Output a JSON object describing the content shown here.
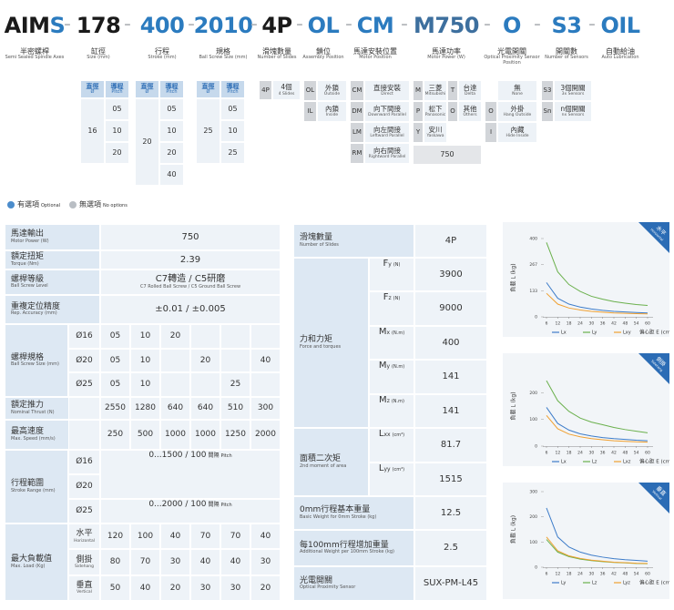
{
  "header": {
    "separator": "-",
    "codes": [
      {
        "parts": [
          {
            "text": "AIM",
            "color": "#1a1a1a"
          },
          {
            "text": "S",
            "color": "#2b7bbf"
          }
        ],
        "label": "半密螺桿",
        "sublabel": "Semi Sealed Spindle Axes"
      },
      {
        "parts": [
          {
            "text": "178",
            "color": "#1a1a1a"
          }
        ],
        "label": "缸徑",
        "sublabel": "Size (mm)"
      },
      {
        "parts": [
          {
            "text": "400",
            "color": "#2b7bbf"
          }
        ],
        "label": "行程",
        "sublabel": "Stroke (mm)"
      },
      {
        "parts": [
          {
            "text": "2010",
            "color": "#2b7bbf"
          }
        ],
        "label": "規格",
        "sublabel": "Ball Screw Size (mm)"
      },
      {
        "parts": [
          {
            "text": "4P",
            "color": "#1a1a1a"
          }
        ],
        "label": "滑塊數量",
        "sublabel": "Number of Slides"
      },
      {
        "parts": [
          {
            "text": "OL",
            "color": "#2b7bbf"
          }
        ],
        "label": "鎖位",
        "sublabel": "Assembly Position"
      },
      {
        "parts": [
          {
            "text": "CM",
            "color": "#2b7bbf"
          }
        ],
        "label": "馬達安裝位置",
        "sublabel": "Motor Position"
      },
      {
        "parts": [
          {
            "text": "M750",
            "color": "#3d6f9e"
          }
        ],
        "label": "馬達功率",
        "sublabel": "Motor Power (W)"
      },
      {
        "parts": [
          {
            "text": "O",
            "color": "#2b7bbf"
          }
        ],
        "label": "光電開關",
        "sublabel": "Optical Proximity Sensor Position"
      },
      {
        "parts": [
          {
            "text": "S3",
            "color": "#2b7bbf"
          }
        ],
        "label": "開關數",
        "sublabel": "Number of Sensors"
      },
      {
        "parts": [
          {
            "text": "OIL",
            "color": "#2b7bbf"
          }
        ],
        "label": "自動給油",
        "sublabel": "Auto Lubrication"
      }
    ]
  },
  "options": {
    "screw_boxes": [
      {
        "headers": [
          "直徑",
          "導程"
        ],
        "header_subs": [
          "Ø",
          "Pitch"
        ],
        "diameter": "16",
        "pitches": [
          "05",
          "10",
          "20"
        ]
      },
      {
        "headers": [
          "直徑",
          "導程"
        ],
        "header_subs": [
          "Ø",
          "Pitch"
        ],
        "diameter": "20",
        "pitches": [
          "05",
          "10",
          "20",
          "40"
        ]
      },
      {
        "headers": [
          "直徑",
          "導程"
        ],
        "header_subs": [
          "Ø",
          "Pitch"
        ],
        "diameter": "25",
        "pitches": [
          "05",
          "10",
          "25"
        ]
      }
    ],
    "slides": [
      {
        "code": "4P",
        "label": "4個",
        "sub": "4 Slides"
      }
    ],
    "lock": [
      {
        "code": "OL",
        "label": "外鎖",
        "sub": "Outside"
      },
      {
        "code": "IL",
        "label": "內鎖",
        "sub": "Inside"
      }
    ],
    "motor_position": [
      {
        "code": "CM",
        "label": "直接安裝",
        "sub": "Direct"
      },
      {
        "code": "DM",
        "label": "向下間接",
        "sub": "Downward Parallel"
      },
      {
        "code": "LM",
        "label": "向左間接",
        "sub": "Leftward Parallel"
      },
      {
        "code": "RM",
        "label": "向右間接",
        "sub": "Rightward Parallel"
      }
    ],
    "motor_brand": [
      {
        "code": "M",
        "label": "三菱",
        "sub": "Mitsubishi"
      },
      {
        "code": "T",
        "label": "台達",
        "sub": "Delta"
      },
      {
        "code": "P",
        "label": "松下",
        "sub": "Panasonic"
      },
      {
        "code": "O",
        "label": "其他",
        "sub": "Others"
      },
      {
        "code": "Y",
        "label": "安川",
        "sub": "Yaskawa"
      }
    ],
    "motor_power": "750",
    "sensor_position": [
      {
        "label": "無",
        "sub": "None"
      },
      {
        "code": "O",
        "label": "外掛",
        "sub": "Hang Outside"
      },
      {
        "code": "I",
        "label": "內藏",
        "sub": "Hide Inside"
      }
    ],
    "sensor_count": [
      {
        "code": "S3",
        "label": "3個開關",
        "sub": "3x Sensors"
      },
      {
        "code": "Sn",
        "label": "n個開關",
        "sub": "nx Sensors"
      }
    ]
  },
  "legend": {
    "optional": "有選項",
    "optional_en": "Optional",
    "none": "無選項",
    "none_en": "No options"
  },
  "spec_table": {
    "rows": [
      {
        "label": "馬達輸出",
        "sub": "Motor Power (W)",
        "value": "750"
      },
      {
        "label": "額定扭矩",
        "sub": "Torque (Nm)",
        "value": "2.39"
      },
      {
        "label": "螺桿等級",
        "sub": "Ball Screw Level",
        "value": "C7轉造 / C5研磨",
        "value_sub": "C7 Rolled Ball Screw / C5 Ground Ball Screw"
      },
      {
        "label": "重複定位精度",
        "sub": "Rep. Accuracy (mm)",
        "value": "±0.01 / ±0.005"
      },
      {
        "label": "螺桿規格",
        "sub": "Ball Screw Size (mm)",
        "rows": [
          {
            "key": "Ø16",
            "values": [
              "05",
              "10",
              "20",
              null,
              null,
              null
            ]
          },
          {
            "key": "Ø20",
            "values": [
              "05",
              "10",
              null,
              "20",
              null,
              "40"
            ]
          },
          {
            "key": "Ø25",
            "values": [
              "05",
              "10",
              null,
              null,
              "25",
              null
            ]
          }
        ]
      },
      {
        "label": "額定推力",
        "sub": "Nominal Thrust (N)",
        "values": [
          2550,
          1280,
          640,
          640,
          510,
          300
        ]
      },
      {
        "label": "最高速度",
        "sub": "Max. Speed (mm/s)",
        "values": [
          250,
          500,
          1000,
          1000,
          1250,
          2000
        ]
      },
      {
        "label": "行程範圍",
        "sub": "Stroke Range (mm)",
        "keys": [
          "Ø16",
          "Ø20",
          "Ø25"
        ],
        "ranges": [
          {
            "value": "0...1500 / 100",
            "pitch": "間隔",
            "pitch_en": "Pitch"
          },
          {
            "value": "0...2000 / 100",
            "pitch": "間隔",
            "pitch_en": "Pitch"
          }
        ]
      },
      {
        "label": "最大負載值",
        "sub": "Max. Load (Kg)",
        "rows": [
          {
            "key": "水平",
            "key_en": "Horizontal",
            "values": [
              120,
              100,
              40,
              70,
              70,
              40
            ]
          },
          {
            "key": "側掛",
            "key_en": "Sidehang",
            "values": [
              80,
              70,
              30,
              40,
              40,
              30
            ]
          },
          {
            "key": "垂直",
            "key_en": "Vertical",
            "values": [
              50,
              40,
              20,
              30,
              30,
              20
            ]
          }
        ]
      }
    ]
  },
  "load_table": {
    "rows": [
      {
        "label": "滑塊數量",
        "sub": "Number of Slides",
        "value": "4P"
      },
      {
        "label": "力和力矩",
        "sub": "Force and torques",
        "rows": [
          {
            "key": "F",
            "index": "y",
            "unit": "(N)",
            "value": 3900
          },
          {
            "key": "F",
            "index": "z",
            "unit": "(N)",
            "value": 9000
          },
          {
            "key": "M",
            "index": "x",
            "unit": "(N.m)",
            "value": 400
          },
          {
            "key": "M",
            "index": "y",
            "unit": "(N.m)",
            "value": 141
          },
          {
            "key": "M",
            "index": "z",
            "unit": "(N.m)",
            "value": 141
          }
        ]
      },
      {
        "label": "面積二次矩",
        "sub": "2nd moment of area",
        "rows": [
          {
            "key": "L",
            "index": "xx",
            "unit": "(cm⁴)",
            "value": 81.7
          },
          {
            "key": "L",
            "index": "yy",
            "unit": "(cm⁴)",
            "value": 1515
          }
        ]
      },
      {
        "label": "0mm行程基本重量",
        "sub": "Basic Weight for 0mm Stroke (kg)",
        "value": 12.5
      },
      {
        "label": "每100mm行程增加重量",
        "sub": "Additional Weight per 100mm Stroke (kg)",
        "value": 2.5
      },
      {
        "label": "光電開關",
        "sub": "Optical Proximity Sensor",
        "value": "SUX-PM-L45"
      }
    ]
  },
  "charts": [
    {
      "type": "line",
      "badge": "水平",
      "badge_en": "Horizontal",
      "y_label": "負載 L (kg)",
      "x_label": "偏心距 E (cm)",
      "x": [
        6,
        12,
        18,
        24,
        30,
        36,
        42,
        48,
        54,
        60
      ],
      "xlim": [
        6,
        60
      ],
      "xticks": [
        6,
        12,
        18,
        24,
        30,
        36,
        42,
        48,
        54,
        60
      ],
      "ylim": [
        0,
        400
      ],
      "yticks": [
        0,
        133,
        267,
        400
      ],
      "series": [
        {
          "name": "Lx",
          "color": "#3d7cc9",
          "values": [
            175,
            95,
            65,
            50,
            40,
            33,
            28,
            25,
            22,
            20
          ]
        },
        {
          "name": "Ly",
          "color": "#6ab04c",
          "values": [
            380,
            230,
            165,
            130,
            105,
            90,
            78,
            70,
            63,
            58
          ]
        },
        {
          "name": "Lxy",
          "color": "#f0a030",
          "values": [
            120,
            65,
            45,
            35,
            28,
            24,
            20,
            18,
            16,
            15
          ]
        }
      ]
    },
    {
      "type": "line",
      "badge": "側掛",
      "badge_en": "Sidehang",
      "y_label": "負載 L (kg)",
      "x_label": "偏心距 E (cm)",
      "x": [
        6,
        12,
        18,
        24,
        30,
        36,
        42,
        48,
        54,
        60
      ],
      "xlim": [
        6,
        60
      ],
      "xticks": [
        6,
        12,
        18,
        24,
        30,
        36,
        42,
        48,
        54,
        60
      ],
      "ylim": [
        0,
        300
      ],
      "yticks": [
        0,
        100,
        200
      ],
      "series": [
        {
          "name": "Lx",
          "color": "#3d7cc9",
          "values": [
            145,
            85,
            60,
            46,
            38,
            32,
            28,
            25,
            22,
            20
          ]
        },
        {
          "name": "Lz",
          "color": "#6ab04c",
          "values": [
            245,
            170,
            130,
            105,
            90,
            80,
            70,
            62,
            56,
            50
          ]
        },
        {
          "name": "Lxz",
          "color": "#f0a030",
          "values": [
            115,
            65,
            45,
            35,
            28,
            24,
            20,
            18,
            16,
            15
          ]
        }
      ]
    },
    {
      "type": "line",
      "badge": "垂直",
      "badge_en": "Vertical",
      "y_label": "負載 L (kg)",
      "x_label": "偏心距 E (cm)",
      "x": [
        6,
        12,
        18,
        24,
        30,
        36,
        42,
        48,
        54,
        60
      ],
      "xlim": [
        6,
        60
      ],
      "xticks": [
        6,
        12,
        18,
        24,
        30,
        36,
        42,
        48,
        54,
        60
      ],
      "ylim": [
        0,
        300
      ],
      "yticks": [
        0,
        100,
        200,
        300
      ],
      "series": [
        {
          "name": "Ly",
          "color": "#3d7cc9",
          "values": [
            235,
            120,
            80,
            60,
            48,
            40,
            34,
            30,
            27,
            24
          ]
        },
        {
          "name": "Lz",
          "color": "#6ab04c",
          "values": [
            110,
            60,
            42,
            32,
            26,
            22,
            19,
            17,
            15,
            14
          ]
        },
        {
          "name": "Lyz",
          "color": "#f0a030",
          "values": [
            120,
            65,
            45,
            35,
            28,
            24,
            20,
            18,
            16,
            15
          ]
        }
      ]
    }
  ]
}
